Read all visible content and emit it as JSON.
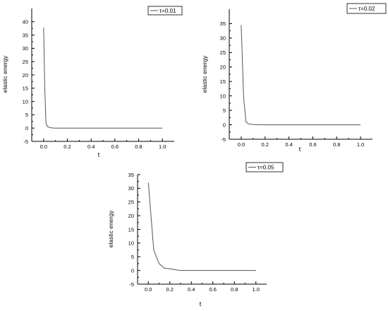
{
  "chart_data": [
    {
      "type": "line",
      "xlabel": "t",
      "ylabel": "elastic energy",
      "xlim": [
        -0.1,
        1.1
      ],
      "ylim": [
        -5,
        45
      ],
      "xticks": [
        "0.0",
        "0.2",
        "0.4",
        "0.6",
        "0.8",
        "1.0"
      ],
      "yticks": [
        "-5",
        "0",
        "5",
        "10",
        "15",
        "20",
        "25",
        "30",
        "35",
        "40"
      ],
      "legend_position": "top-right",
      "series": [
        {
          "name": "τ=0.01",
          "color": "#555555",
          "x": [
            0.0,
            0.01,
            0.02,
            0.03,
            0.05,
            0.07,
            0.1,
            0.2,
            0.4,
            0.6,
            0.8,
            1.0
          ],
          "y": [
            37.8,
            14.5,
            1.8,
            0.7,
            0.2,
            0.05,
            0.0,
            0.0,
            0.0,
            0.0,
            0.0,
            0.0
          ]
        }
      ]
    },
    {
      "type": "line",
      "xlabel": "t",
      "ylabel": "elastic energy",
      "xlim": [
        -0.1,
        1.1
      ],
      "ylim": [
        -5,
        40
      ],
      "xticks": [
        "0.0",
        "0.2",
        "0.4",
        "0.6",
        "0.8",
        "1.0"
      ],
      "yticks": [
        "-5",
        "0",
        "5",
        "10",
        "15",
        "20",
        "25",
        "30",
        "35"
      ],
      "legend_position": "top-right",
      "series": [
        {
          "name": "τ=0.02",
          "color": "#555555",
          "x": [
            0.0,
            0.02,
            0.04,
            0.06,
            0.1,
            0.14,
            0.2,
            0.4,
            0.6,
            0.8,
            1.0
          ],
          "y": [
            34.5,
            9.5,
            1.0,
            0.3,
            0.1,
            0.03,
            0.0,
            0.0,
            0.0,
            0.0,
            0.0
          ]
        }
      ]
    },
    {
      "type": "line",
      "xlabel": "t",
      "ylabel": "elastic energy",
      "xlim": [
        -0.1,
        1.1
      ],
      "ylim": [
        -5,
        35
      ],
      "xticks": [
        "0.0",
        "0.2",
        "0.4",
        "0.6",
        "0.8",
        "1.0"
      ],
      "yticks": [
        "-5",
        "0",
        "5",
        "10",
        "15",
        "20",
        "25",
        "30",
        "35"
      ],
      "legend_position": "top-right",
      "series": [
        {
          "name": "τ=0.05",
          "color": "#555555",
          "x": [
            0.0,
            0.05,
            0.1,
            0.15,
            0.2,
            0.25,
            0.3,
            0.35,
            0.4,
            0.6,
            0.8,
            1.0
          ],
          "y": [
            32.0,
            7.5,
            2.5,
            0.8,
            0.6,
            0.3,
            0.0,
            0.0,
            0.0,
            0.0,
            0.0,
            0.0
          ]
        }
      ]
    }
  ]
}
